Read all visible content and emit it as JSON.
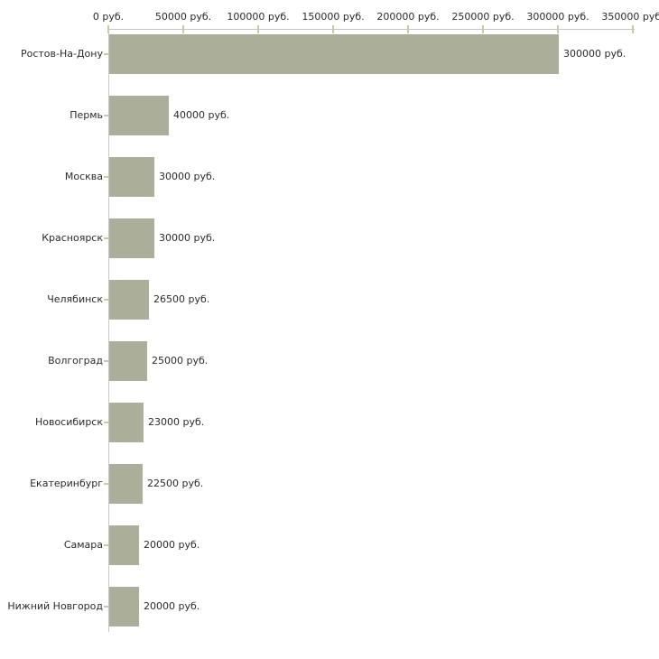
{
  "chart_data": {
    "type": "bar",
    "orientation": "horizontal",
    "title": "",
    "xlabel": "",
    "ylabel": "",
    "unit": "руб.",
    "categories": [
      "Ростов-На-Дону",
      "Пермь",
      "Москва",
      "Красноярск",
      "Челябинск",
      "Волгоград",
      "Новосибирск",
      "Екатеринбург",
      "Самара",
      "Нижний Новгород"
    ],
    "values": [
      300000,
      40000,
      30000,
      30000,
      26500,
      25000,
      23000,
      22500,
      20000,
      20000
    ],
    "bar_labels": [
      "300000 руб.",
      "40000 руб.",
      "30000 руб.",
      "30000 руб.",
      "26500 руб.",
      "25000 руб.",
      "23000 руб.",
      "22500 руб.",
      "20000 руб.",
      "20000 руб."
    ],
    "x_ticks": [
      {
        "value": 0,
        "label": "0 руб."
      },
      {
        "value": 50000,
        "label": "50000 руб."
      },
      {
        "value": 100000,
        "label": "100000 руб."
      },
      {
        "value": 150000,
        "label": "150000 руб."
      },
      {
        "value": 200000,
        "label": "200000 руб."
      },
      {
        "value": 250000,
        "label": "250000 руб."
      },
      {
        "value": 300000,
        "label": "300000 руб."
      },
      {
        "value": 350000,
        "label": "350000 руб."
      }
    ],
    "xlim": [
      0,
      350000
    ],
    "grid": false,
    "legend": "none",
    "colors": {
      "bar_fill": "#abae98",
      "axis_line": "#c6c6c6",
      "tick_mark": "#c9cba2",
      "label_text": "#2b2b2b",
      "background": "#ffffff"
    }
  }
}
